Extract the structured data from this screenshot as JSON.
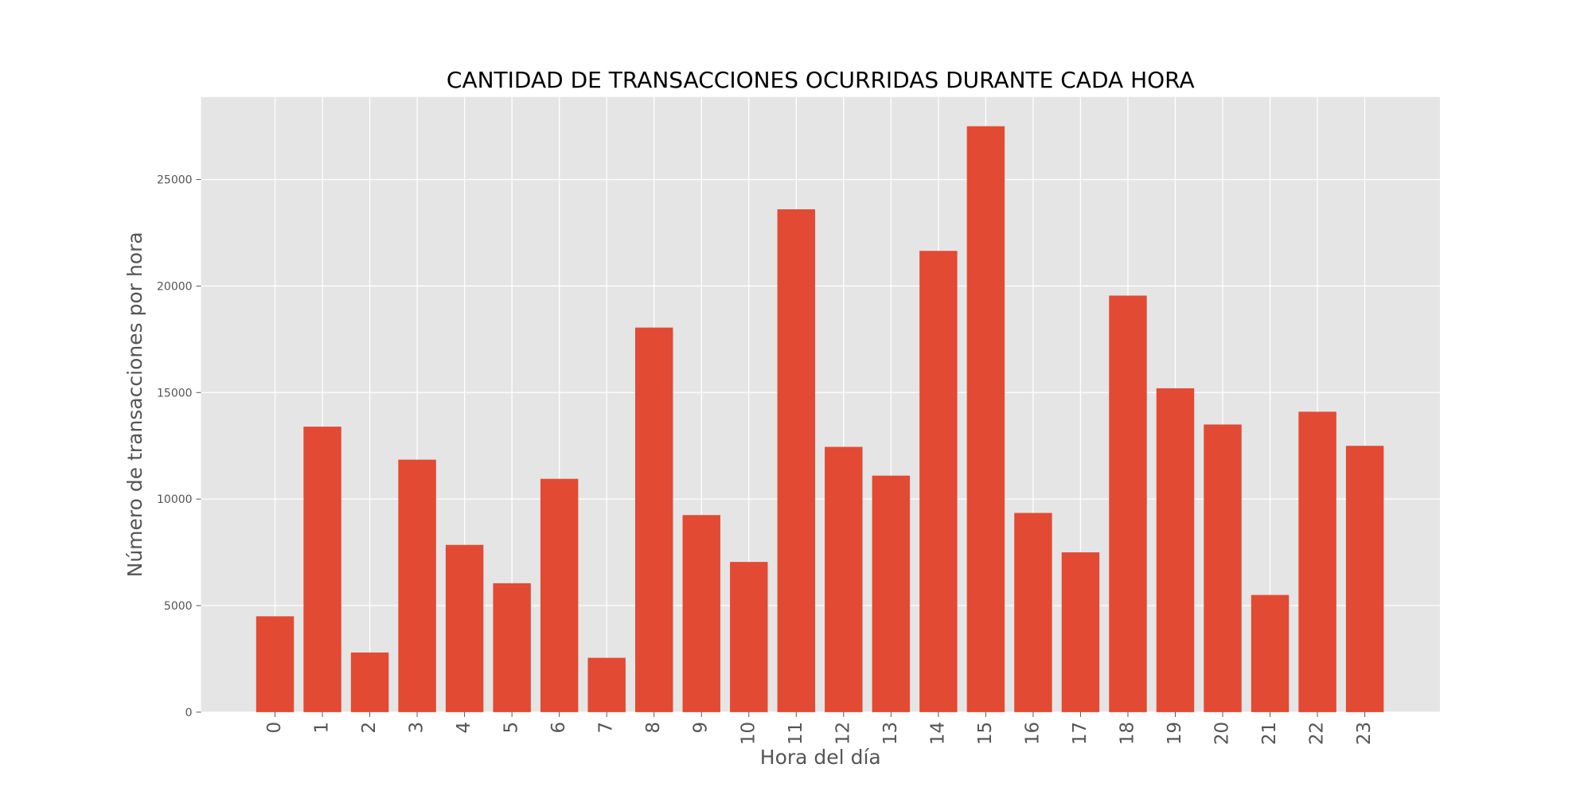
{
  "chart_data": {
    "type": "bar",
    "title": "CANTIDAD DE TRANSACCIONES OCURRIDAS DURANTE CADA HORA",
    "xlabel": "Hora del día",
    "ylabel": "Número de transacciones por hora",
    "categories": [
      "0",
      "1",
      "2",
      "3",
      "4",
      "5",
      "6",
      "7",
      "8",
      "9",
      "10",
      "11",
      "12",
      "13",
      "14",
      "15",
      "16",
      "17",
      "18",
      "19",
      "20",
      "21",
      "22",
      "23"
    ],
    "values": [
      4500,
      13400,
      2800,
      11850,
      7850,
      6050,
      10950,
      2550,
      18050,
      9250,
      7050,
      23600,
      12450,
      11100,
      21650,
      27500,
      9350,
      7500,
      19550,
      15200,
      13500,
      5500,
      14100,
      12500
    ],
    "yticks": [
      0,
      5000,
      10000,
      15000,
      20000,
      25000
    ],
    "ylim": [
      0,
      28875
    ],
    "grid": true,
    "colors": {
      "bar": "#e24a33",
      "background": "#e5e5e5",
      "grid": "#ffffff",
      "text": "#555555",
      "title": "#000000"
    }
  }
}
